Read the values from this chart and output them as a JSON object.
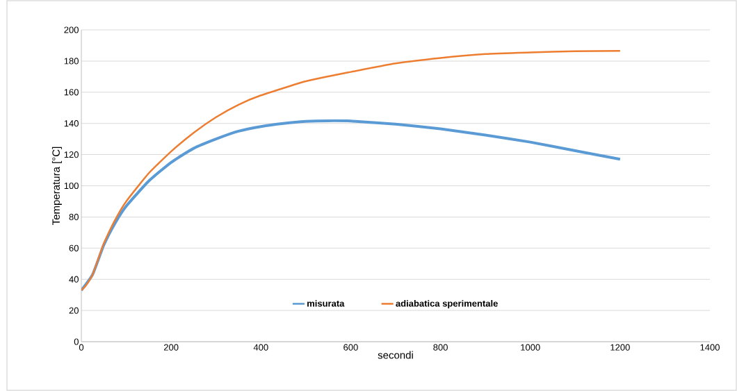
{
  "chart_data": {
    "type": "line",
    "xlabel": "secondi",
    "ylabel": "Temperatura [°C]",
    "xlim": [
      0,
      1400
    ],
    "xticks": [
      0,
      200,
      400,
      600,
      800,
      1000,
      1200,
      1400
    ],
    "ylim": [
      0,
      200
    ],
    "yticks": [
      0,
      20,
      40,
      60,
      80,
      100,
      120,
      140,
      160,
      180,
      200
    ],
    "grid": "y",
    "legend": "bottom",
    "marker": "none",
    "line_style": "solid",
    "series": [
      {
        "name": "misurata",
        "color": "#5b9bd5",
        "x": [
          0,
          25,
          50,
          75,
          100,
          150,
          200,
          250,
          300,
          350,
          400,
          450,
          500,
          550,
          600,
          700,
          800,
          900,
          1000,
          1100,
          1200
        ],
        "values": [
          33,
          43,
          62,
          76,
          87,
          103,
          115,
          124,
          130,
          135,
          138,
          140,
          141.3,
          141.7,
          141.5,
          139.5,
          136.5,
          132.5,
          128,
          122.5,
          117
        ]
      },
      {
        "name": "adiabatica sperimentale",
        "color": "#ed7d31",
        "x": [
          0,
          10,
          25,
          40,
          50,
          75,
          100,
          150,
          200,
          250,
          300,
          350,
          400,
          500,
          600,
          700,
          800,
          900,
          1000,
          1100,
          1200
        ],
        "values": [
          33,
          36,
          43,
          55,
          63,
          78,
          90,
          108,
          122,
          134,
          144,
          152,
          158,
          167,
          173,
          178.5,
          182,
          184.5,
          185.5,
          186.3,
          186.5
        ]
      }
    ]
  }
}
